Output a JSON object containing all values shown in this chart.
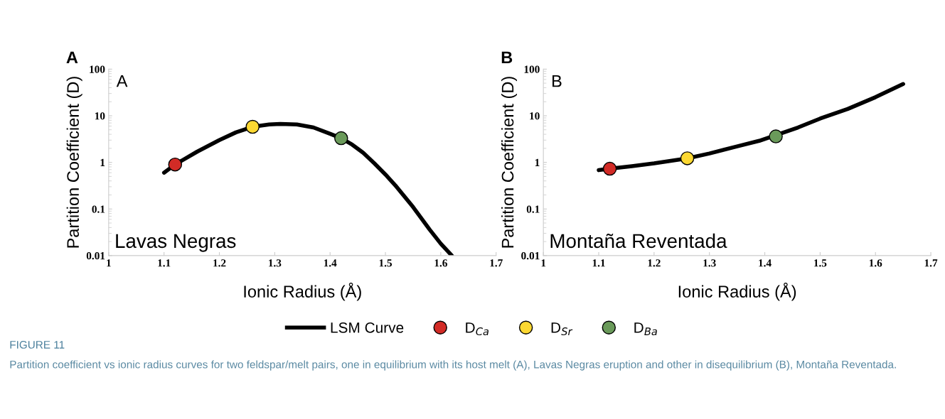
{
  "chart_data": [
    {
      "type": "line",
      "title": "A",
      "xlabel": "Ionic Radius (Å)",
      "ylabel": "Partition Coefficient (D)",
      "log": "y",
      "xlim": [
        1,
        1.7
      ],
      "xticks": [
        1,
        1.1,
        1.2,
        1.3,
        1.4,
        1.5,
        1.6,
        1.7
      ],
      "ylim": [
        0.01,
        100
      ],
      "yticks": [
        0.01,
        0.1,
        1,
        10,
        100
      ],
      "grid": false,
      "legend": "bottom",
      "annotations": [
        "A",
        "Lavas Negras",
        "FIGURE 11",
        "Partition coefficient vs ionic radius curves for two feldspar/melt pairs, one in equilibrium with its host melt (A), Lavas Negras eruption and other in disequilibrium (B), Montaña Reventada."
      ],
      "series": [
        {
          "name": "LSM Curve",
          "color": "#000000",
          "marker": "none",
          "x": [
            1.1,
            1.12,
            1.16,
            1.2,
            1.23,
            1.26,
            1.29,
            1.31,
            1.34,
            1.37,
            1.4,
            1.42,
            1.44,
            1.46,
            1.48,
            1.5,
            1.52,
            1.55,
            1.58,
            1.6,
            1.62
          ],
          "values": [
            0.6,
            0.9,
            1.7,
            3.0,
            4.4,
            5.8,
            6.5,
            6.7,
            6.5,
            5.6,
            4.1,
            3.3,
            2.4,
            1.6,
            0.95,
            0.55,
            0.3,
            0.11,
            0.036,
            0.018,
            0.01
          ]
        },
        {
          "name": "D$_{Ca}$",
          "type": "scatter",
          "color": "#d22b26",
          "marker": "circle",
          "x": [
            1.12
          ],
          "values": [
            0.9
          ]
        },
        {
          "name": "D$_{Sr}$",
          "type": "scatter",
          "color": "#fcd832",
          "marker": "circle",
          "x": [
            1.26
          ],
          "values": [
            5.8
          ]
        },
        {
          "name": "D$_{Ba}$",
          "type": "scatter",
          "color": "#6a9a5a",
          "marker": "circle",
          "x": [
            1.42
          ],
          "values": [
            3.3
          ]
        }
      ]
    },
    {
      "type": "line",
      "title": "B",
      "xlabel": "Ionic Radius (Å)",
      "ylabel": "Partition Coefficient (D)",
      "log": "y",
      "xlim": [
        1,
        1.7
      ],
      "xticks": [
        1,
        1.1,
        1.2,
        1.3,
        1.4,
        1.5,
        1.6,
        1.7
      ],
      "ylim": [
        0.01,
        100
      ],
      "yticks": [
        0.01,
        0.1,
        1,
        10,
        100
      ],
      "grid": false,
      "annotations": [
        "B",
        "Montaña Reventada"
      ],
      "series": [
        {
          "color": "#000000",
          "marker": "none",
          "x": [
            1.1,
            1.12,
            1.16,
            1.2,
            1.26,
            1.3,
            1.35,
            1.39,
            1.46,
            1.5,
            1.55,
            1.6,
            1.65
          ],
          "values": [
            0.68,
            0.73,
            0.83,
            0.95,
            1.22,
            1.55,
            2.2,
            2.9,
            5.6,
            8.7,
            14,
            25,
            48
          ]
        },
        {
          "type": "scatter",
          "color": "#d22b26",
          "marker": "circle",
          "x": [
            1.12
          ],
          "values": [
            0.73
          ]
        },
        {
          "type": "scatter",
          "color": "#fcd832",
          "marker": "circle",
          "x": [
            1.26
          ],
          "values": [
            1.22
          ]
        },
        {
          "type": "scatter",
          "color": "#6a9a5a",
          "marker": "circle",
          "x": [
            1.42
          ],
          "values": [
            3.6
          ]
        }
      ]
    }
  ]
}
